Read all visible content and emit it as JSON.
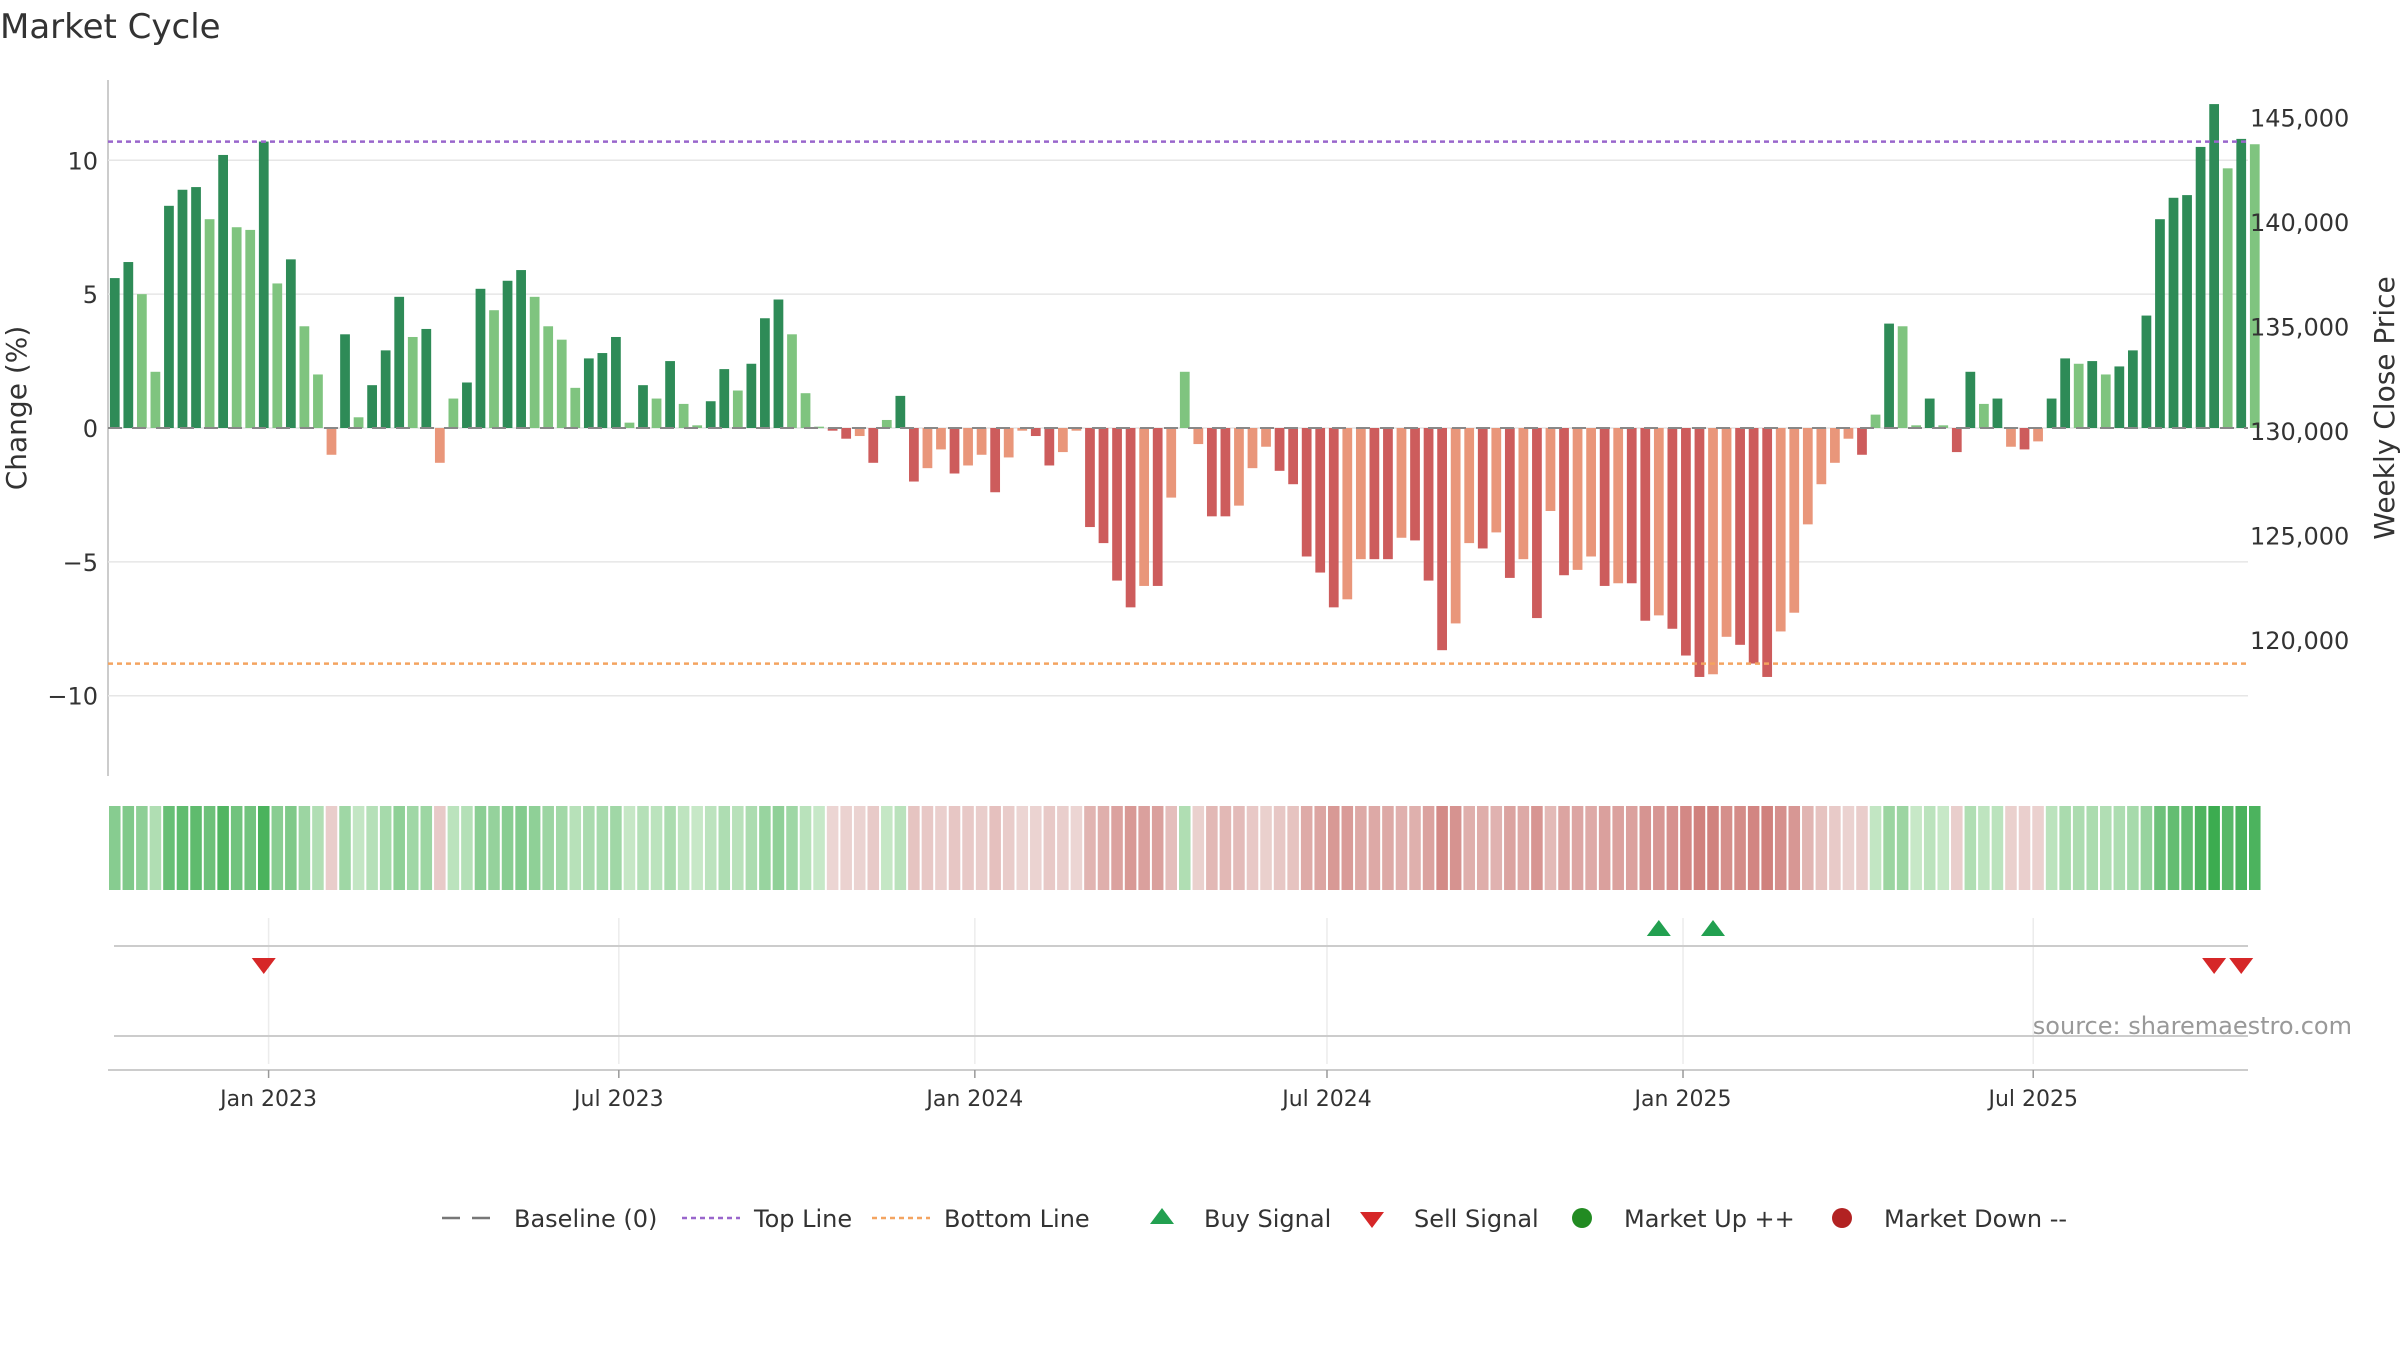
{
  "chart_data": {
    "type": "bar",
    "title": "Market Cycle",
    "ylabel_left": "Change (%)",
    "ylabel_right": "Weekly Close Price",
    "ylim_left": [
      -13,
      13
    ],
    "ylim_right": [
      113500,
      146800
    ],
    "yticks_left": [
      10,
      5,
      0,
      -5,
      -10
    ],
    "yticks_left_labels": [
      "10",
      "5",
      "0",
      "−5",
      "−10"
    ],
    "yticks_right": [
      145000,
      140000,
      135000,
      130000,
      125000,
      120000
    ],
    "yticks_right_labels": [
      "145,000",
      "140,000",
      "135,000",
      "130,000",
      "125,000",
      "120,000"
    ],
    "x_start": "2022-10-10",
    "x_end": "2025-10-20",
    "week_start": "2022-10-10",
    "x_ticks": [
      {
        "date": "2023-01-01",
        "label": "Jan 2023"
      },
      {
        "date": "2023-07-01",
        "label": "Jul 2023"
      },
      {
        "date": "2024-01-01",
        "label": "Jan 2024"
      },
      {
        "date": "2024-07-01",
        "label": "Jul 2024"
      },
      {
        "date": "2025-01-01",
        "label": "Jan 2025"
      },
      {
        "date": "2025-07-01",
        "label": "Jul 2025"
      }
    ],
    "top_line": 10.7,
    "bottom_line": -8.8,
    "baseline": 0,
    "change_values": [
      5.6,
      6.2,
      5.0,
      2.1,
      8.3,
      8.9,
      9.0,
      7.8,
      10.2,
      7.5,
      7.4,
      10.7,
      5.4,
      6.3,
      3.8,
      2.0,
      -1.0,
      3.5,
      0.4,
      1.6,
      2.9,
      4.9,
      3.4,
      3.7,
      -1.3,
      1.1,
      1.7,
      5.2,
      4.4,
      5.5,
      5.9,
      4.9,
      3.8,
      3.3,
      1.5,
      2.6,
      2.8,
      3.4,
      0.2,
      1.6,
      1.1,
      2.5,
      0.9,
      0.1,
      1.0,
      2.2,
      1.4,
      2.4,
      4.1,
      4.8,
      3.5,
      1.3,
      0.05,
      -0.1,
      -0.4,
      -0.3,
      -1.3,
      0.3,
      1.2,
      -2.0,
      -1.5,
      -0.8,
      -1.7,
      -1.4,
      -1.0,
      -2.4,
      -1.1,
      -0.1,
      -0.3,
      -1.4,
      -0.9,
      -0.1,
      -3.7,
      -4.3,
      -5.7,
      -6.7,
      -5.9,
      -5.9,
      -2.6,
      2.1,
      -0.6,
      -3.3,
      -3.3,
      -2.9,
      -1.5,
      -0.7,
      -1.6,
      -2.1,
      -4.8,
      -5.4,
      -6.7,
      -6.4,
      -4.9,
      -4.9,
      -4.9,
      -4.1,
      -4.2,
      -5.7,
      -8.3,
      -7.3,
      -4.3,
      -4.5,
      -3.9,
      -5.6,
      -4.9,
      -7.1,
      -3.1,
      -5.5,
      -5.3,
      -4.8,
      -5.9,
      -5.8,
      -5.8,
      -7.2,
      -7.0,
      -7.5,
      -8.5,
      -9.3,
      -9.2,
      -7.8,
      -8.1,
      -8.8,
      -9.3,
      -7.6,
      -6.9,
      -3.6,
      -2.1,
      -1.3,
      -0.4,
      -1.0,
      0.5,
      3.9,
      3.8,
      0.1,
      1.1,
      0.1,
      -0.9,
      2.1,
      0.9,
      1.1,
      -0.7,
      -0.8,
      -0.5,
      1.1,
      2.6,
      2.4,
      2.5,
      2.0,
      2.3,
      2.9,
      4.2,
      7.8,
      8.6,
      8.7,
      10.5,
      12.1,
      9.7,
      10.8,
      10.6
    ],
    "signals": [
      {
        "type": "sell",
        "date": "2022-12-26"
      },
      {
        "type": "buy",
        "date": "2024-12-16"
      },
      {
        "type": "buy",
        "date": "2025-01-13"
      },
      {
        "type": "sell",
        "date": "2025-09-29"
      },
      {
        "type": "sell",
        "date": "2025-10-13"
      }
    ],
    "legend": [
      {
        "key": "baseline",
        "label": "Baseline (0)"
      },
      {
        "key": "top",
        "label": "Top Line"
      },
      {
        "key": "bottom",
        "label": "Bottom Line"
      },
      {
        "key": "buy",
        "label": "Buy Signal"
      },
      {
        "key": "sell",
        "label": "Sell Signal"
      },
      {
        "key": "up",
        "label": "Market Up ++"
      },
      {
        "key": "down",
        "label": "Market Down --"
      }
    ],
    "source": "source: sharemaestro.com",
    "colors": {
      "green_dark": "#2e8b57",
      "green_light": "#7fc47f",
      "red_dark": "#cd5c5c",
      "red_light": "#e9967a",
      "top_line": "#9966cc",
      "bottom_line": "#f4a460",
      "buy": "#22a050",
      "sell": "#d62728",
      "up": "#228b22",
      "down": "#b22222",
      "grid": "#e6e6e6",
      "axis": "#333333"
    }
  }
}
